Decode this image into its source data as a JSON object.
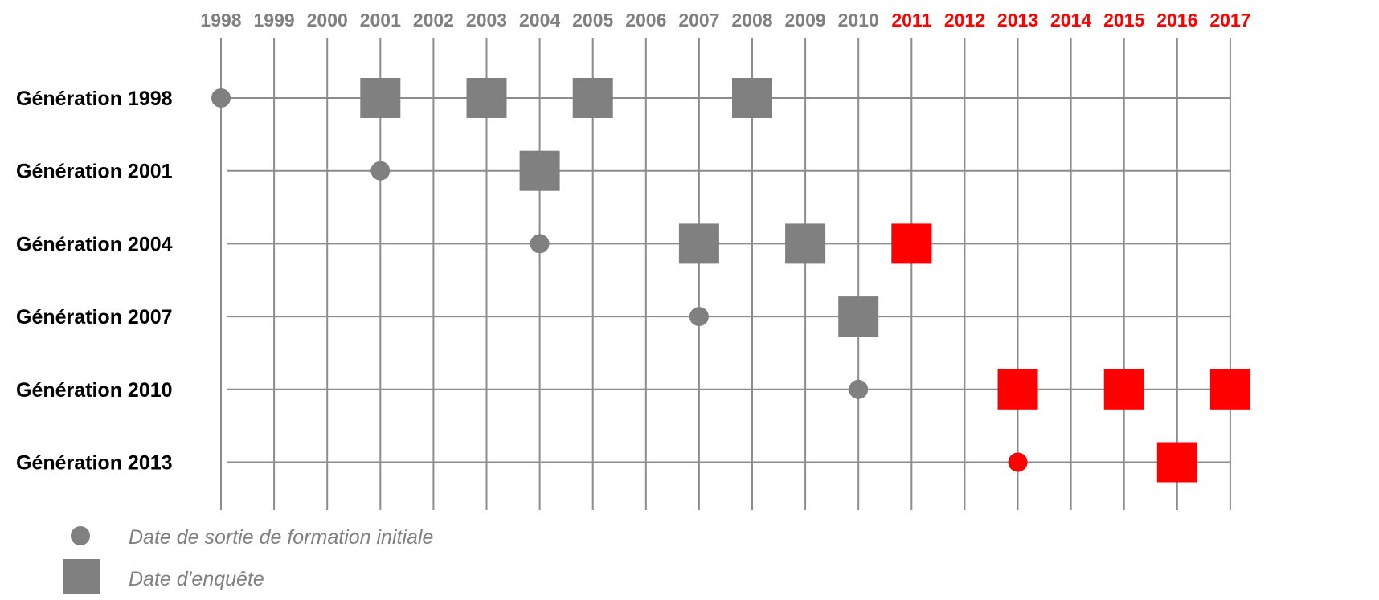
{
  "colors": {
    "gray": "#808080",
    "red": "#ff0000",
    "line": "#8c8c8c",
    "label": "#000000"
  },
  "chart_data": {
    "type": "timeline",
    "years": [
      {
        "label": "1998",
        "highlight": false
      },
      {
        "label": "1999",
        "highlight": false
      },
      {
        "label": "2000",
        "highlight": false
      },
      {
        "label": "2001",
        "highlight": false
      },
      {
        "label": "2002",
        "highlight": false
      },
      {
        "label": "2003",
        "highlight": false
      },
      {
        "label": "2004",
        "highlight": false
      },
      {
        "label": "2005",
        "highlight": false
      },
      {
        "label": "2006",
        "highlight": false
      },
      {
        "label": "2007",
        "highlight": false
      },
      {
        "label": "2008",
        "highlight": false
      },
      {
        "label": "2009",
        "highlight": false
      },
      {
        "label": "2010",
        "highlight": false
      },
      {
        "label": "2011",
        "highlight": true
      },
      {
        "label": "2012",
        "highlight": true
      },
      {
        "label": "2013",
        "highlight": true
      },
      {
        "label": "2014",
        "highlight": true
      },
      {
        "label": "2015",
        "highlight": true
      },
      {
        "label": "2016",
        "highlight": true
      },
      {
        "label": "2017",
        "highlight": true
      }
    ],
    "rows": [
      {
        "label": "Génération 1998",
        "sortie": {
          "year": 1998,
          "color": "gray"
        },
        "enquetes": [
          {
            "year": 2001,
            "color": "gray"
          },
          {
            "year": 2003,
            "color": "gray"
          },
          {
            "year": 2005,
            "color": "gray"
          },
          {
            "year": 2008,
            "color": "gray"
          }
        ]
      },
      {
        "label": "Génération 2001",
        "sortie": {
          "year": 2001,
          "color": "gray"
        },
        "enquetes": [
          {
            "year": 2004,
            "color": "gray"
          }
        ]
      },
      {
        "label": "Génération 2004",
        "sortie": {
          "year": 2004,
          "color": "gray"
        },
        "enquetes": [
          {
            "year": 2007,
            "color": "gray"
          },
          {
            "year": 2009,
            "color": "gray"
          },
          {
            "year": 2011,
            "color": "red"
          }
        ]
      },
      {
        "label": "Génération 2007",
        "sortie": {
          "year": 2007,
          "color": "gray"
        },
        "enquetes": [
          {
            "year": 2010,
            "color": "gray"
          }
        ]
      },
      {
        "label": "Génération 2010",
        "sortie": {
          "year": 2010,
          "color": "gray"
        },
        "enquetes": [
          {
            "year": 2013,
            "color": "red"
          },
          {
            "year": 2015,
            "color": "red"
          },
          {
            "year": 2017,
            "color": "red"
          }
        ]
      },
      {
        "label": "Génération 2013",
        "sortie": {
          "year": 2013,
          "color": "red"
        },
        "enquetes": [
          {
            "year": 2016,
            "color": "red"
          }
        ]
      }
    ],
    "legend": [
      {
        "shape": "circle",
        "text": "Date de sortie de formation initiale"
      },
      {
        "shape": "square",
        "text": "Date d'enquête"
      }
    ]
  }
}
